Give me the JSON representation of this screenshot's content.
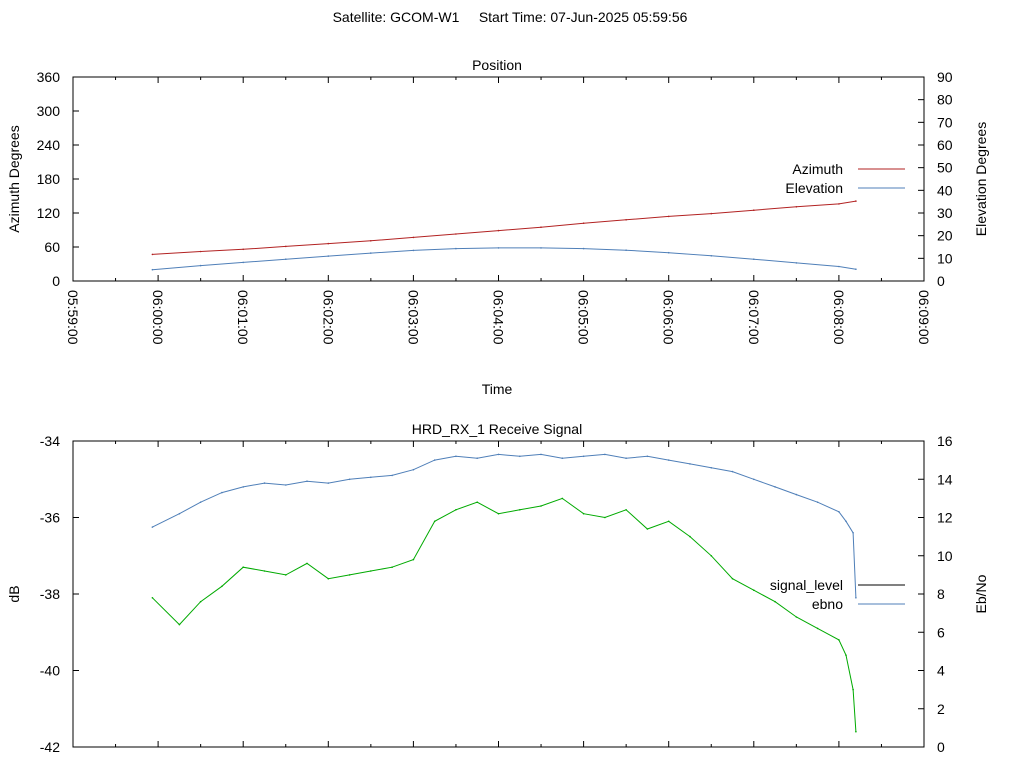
{
  "header": {
    "title": "Satellite: GCOM-W1     Start Time: 07-Jun-2025 05:59:56"
  },
  "chart_data": [
    {
      "type": "line",
      "title": "Position",
      "xlabel": "Time",
      "ylabel": "Azimuth Degrees",
      "y2label": "Elevation Degrees",
      "x_ticks": [
        "05:59:00",
        "06:00:00",
        "06:01:00",
        "06:02:00",
        "06:03:00",
        "06:04:00",
        "06:05:00",
        "06:06:00",
        "06:07:00",
        "06:08:00",
        "06:09:00"
      ],
      "ylim": [
        0,
        360
      ],
      "y_ticks": [
        "0",
        "60",
        "120",
        "180",
        "240",
        "300",
        "360"
      ],
      "y2lim": [
        0,
        90
      ],
      "y2_ticks": [
        "0",
        "10",
        "20",
        "30",
        "40",
        "50",
        "60",
        "70",
        "80",
        "90"
      ],
      "legend_position": "top-right",
      "series": [
        {
          "name": "Azimuth",
          "axis": "y",
          "color": "#b22222",
          "x": [
            "05:59:56",
            "06:00:30",
            "06:01:00",
            "06:01:30",
            "06:02:00",
            "06:02:30",
            "06:03:00",
            "06:03:30",
            "06:04:00",
            "06:04:30",
            "06:05:00",
            "06:05:30",
            "06:06:00",
            "06:06:30",
            "06:07:00",
            "06:07:30",
            "06:08:00",
            "06:08:12"
          ],
          "values": [
            47,
            52,
            56,
            61,
            66,
            71,
            77,
            83,
            89,
            95,
            102,
            108,
            114,
            119,
            125,
            131,
            136,
            141
          ]
        },
        {
          "name": "Elevation",
          "axis": "y2",
          "color": "#4f7fb8",
          "x": [
            "05:59:56",
            "06:00:30",
            "06:01:00",
            "06:01:30",
            "06:02:00",
            "06:02:30",
            "06:03:00",
            "06:03:30",
            "06:04:00",
            "06:04:30",
            "06:05:00",
            "06:05:30",
            "06:06:00",
            "06:06:30",
            "06:07:00",
            "06:07:30",
            "06:08:00",
            "06:08:12"
          ],
          "values": [
            5.0,
            6.8,
            8.2,
            9.6,
            11.0,
            12.3,
            13.5,
            14.3,
            14.6,
            14.6,
            14.3,
            13.6,
            12.5,
            11.1,
            9.6,
            8.0,
            6.4,
            5.2
          ]
        }
      ]
    },
    {
      "type": "line",
      "title": "HRD_RX_1 Receive Signal",
      "xlabel": "",
      "ylabel": "dB",
      "y2label": "Eb/No",
      "x_ticks": [],
      "ylim": [
        -42,
        -34
      ],
      "y_ticks": [
        "-42",
        "-40",
        "-38",
        "-36",
        "-34"
      ],
      "y2lim": [
        0,
        16
      ],
      "y2_ticks": [
        "0",
        "2",
        "4",
        "6",
        "8",
        "10",
        "12",
        "14",
        "16"
      ],
      "legend_position": "right",
      "series": [
        {
          "name": "signal_level",
          "axis": "y",
          "color": "#00aa00",
          "x": [
            "05:59:56",
            "06:00:15",
            "06:00:30",
            "06:00:45",
            "06:01:00",
            "06:01:15",
            "06:01:30",
            "06:01:45",
            "06:02:00",
            "06:02:15",
            "06:02:30",
            "06:02:45",
            "06:03:00",
            "06:03:15",
            "06:03:30",
            "06:03:45",
            "06:04:00",
            "06:04:15",
            "06:04:30",
            "06:04:45",
            "06:05:00",
            "06:05:15",
            "06:05:30",
            "06:05:45",
            "06:06:00",
            "06:06:15",
            "06:06:30",
            "06:06:45",
            "06:07:00",
            "06:07:15",
            "06:07:30",
            "06:07:45",
            "06:08:00",
            "06:08:05",
            "06:08:10",
            "06:08:12"
          ],
          "values": [
            -38.1,
            -38.8,
            -38.2,
            -37.8,
            -37.3,
            -37.4,
            -37.5,
            -37.2,
            -37.6,
            -37.5,
            -37.4,
            -37.3,
            -37.1,
            -36.1,
            -35.8,
            -35.6,
            -35.9,
            -35.8,
            -35.7,
            -35.5,
            -35.9,
            -36.0,
            -35.8,
            -36.3,
            -36.1,
            -36.5,
            -37.0,
            -37.6,
            -37.9,
            -38.2,
            -38.6,
            -38.9,
            -39.2,
            -39.6,
            -40.5,
            -41.6
          ]
        },
        {
          "name": "ebno",
          "axis": "y2",
          "color": "#4f7fb8",
          "x": [
            "05:59:56",
            "06:00:15",
            "06:00:30",
            "06:00:45",
            "06:01:00",
            "06:01:15",
            "06:01:30",
            "06:01:45",
            "06:02:00",
            "06:02:15",
            "06:02:30",
            "06:02:45",
            "06:03:00",
            "06:03:15",
            "06:03:30",
            "06:03:45",
            "06:04:00",
            "06:04:15",
            "06:04:30",
            "06:04:45",
            "06:05:00",
            "06:05:15",
            "06:05:30",
            "06:05:45",
            "06:06:00",
            "06:06:15",
            "06:06:30",
            "06:06:45",
            "06:07:00",
            "06:07:15",
            "06:07:30",
            "06:07:45",
            "06:08:00",
            "06:08:05",
            "06:08:10",
            "06:08:12"
          ],
          "values": [
            11.5,
            12.2,
            12.8,
            13.3,
            13.6,
            13.8,
            13.7,
            13.9,
            13.8,
            14.0,
            14.1,
            14.2,
            14.5,
            15.0,
            15.2,
            15.1,
            15.3,
            15.2,
            15.3,
            15.1,
            15.2,
            15.3,
            15.1,
            15.2,
            15.0,
            14.8,
            14.6,
            14.4,
            14.0,
            13.6,
            13.2,
            12.8,
            12.3,
            11.8,
            11.2,
            7.8
          ]
        }
      ]
    }
  ]
}
